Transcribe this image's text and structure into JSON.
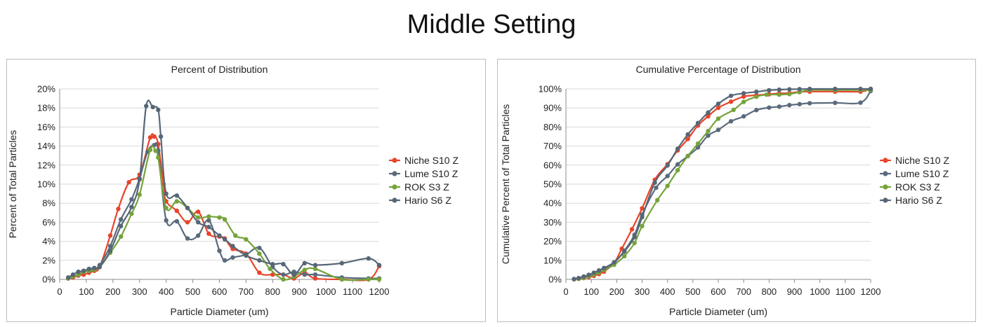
{
  "page_title": "Middle Setting",
  "colors": {
    "niche": "#e8432a",
    "lume": "#5a6a7c",
    "rok": "#75a33a",
    "hario": "#566676",
    "grid": "#d9d9d9",
    "axis": "#8c8c8c"
  },
  "chart_data": [
    {
      "type": "line",
      "title": "Percent of Distribution",
      "xlabel": "Particle Diameter (um)",
      "ylabel": "Percent of Total Particles",
      "xlim": [
        0,
        1200
      ],
      "ylim": [
        0,
        20
      ],
      "xticks": [
        0,
        100,
        200,
        300,
        400,
        500,
        600,
        700,
        800,
        900,
        1000,
        1100,
        1200
      ],
      "xtick_labels": [
        "0",
        "100",
        "200",
        "300",
        "400",
        "500",
        "600",
        "700",
        "800",
        "900",
        "1000",
        "1100",
        "1200"
      ],
      "yticks": [
        0,
        2,
        4,
        6,
        8,
        10,
        12,
        14,
        16,
        18,
        20
      ],
      "ytick_labels": [
        "0%",
        "2%",
        "4%",
        "6%",
        "8%",
        "10%",
        "12%",
        "14%",
        "16%",
        "18%",
        "20%"
      ],
      "legend": [
        "Niche S10 Z",
        "Lume S10 Z",
        "ROK S3 Z",
        "Hario S6 Z"
      ],
      "legend_position": "right",
      "series": [
        {
          "name": "Niche S10 Z",
          "color_key": "niche",
          "x": [
            32,
            50,
            70,
            90,
            110,
            130,
            150,
            190,
            220,
            260,
            300,
            340,
            355,
            370,
            390,
            400,
            440,
            480,
            520,
            560,
            600,
            620,
            650,
            700,
            750,
            800,
            840,
            880,
            920,
            960,
            1060,
            1160,
            1200
          ],
          "y": [
            0.1,
            0.2,
            0.4,
            0.5,
            0.7,
            0.9,
            1.3,
            4.6,
            7.4,
            10.2,
            11.0,
            14.9,
            15.0,
            14.2,
            10.0,
            8.2,
            7.2,
            6.0,
            7.1,
            4.8,
            4.5,
            4.3,
            3.2,
            2.7,
            0.7,
            0.5,
            0.5,
            0.1,
            0.7,
            0.1,
            0,
            0,
            1.4
          ]
        },
        {
          "name": "Lume S10 Z",
          "color_key": "lume",
          "x": [
            32,
            50,
            70,
            90,
            110,
            130,
            150,
            190,
            230,
            270,
            300,
            330,
            355,
            370,
            400,
            440,
            480,
            520,
            560,
            600,
            620,
            650,
            700,
            750,
            800,
            840,
            880,
            920,
            960,
            1060,
            1160,
            1200
          ],
          "y": [
            0.1,
            0.3,
            0.5,
            0.8,
            0.9,
            1.1,
            1.5,
            3.5,
            6.3,
            8.4,
            10.6,
            13.4,
            14.1,
            13.5,
            6.2,
            6.1,
            4.3,
            4.6,
            6.2,
            3.0,
            2.0,
            2.3,
            2.6,
            3.3,
            1.3,
            0.5,
            0.8,
            0.5,
            0.5,
            0.2,
            0.1,
            0.1
          ]
        },
        {
          "name": "ROK S3 Z",
          "color_key": "rok",
          "x": [
            32,
            50,
            70,
            90,
            110,
            130,
            150,
            190,
            230,
            270,
            300,
            340,
            360,
            370,
            400,
            440,
            480,
            520,
            560,
            600,
            620,
            660,
            700,
            750,
            790,
            840,
            880,
            920,
            960,
            1060,
            1160,
            1200
          ],
          "y": [
            0.1,
            0.3,
            0.5,
            0.8,
            0.9,
            1.0,
            1.3,
            2.8,
            4.5,
            6.9,
            8.9,
            13.6,
            13.5,
            12.8,
            7.5,
            8.2,
            7.5,
            6.5,
            6.6,
            6.5,
            6.3,
            4.6,
            4.2,
            2.7,
            1.1,
            0,
            0.3,
            1.0,
            1.1,
            0,
            0,
            0
          ]
        },
        {
          "name": "Hario S6 Z",
          "color_key": "hario",
          "x": [
            32,
            50,
            70,
            90,
            110,
            130,
            150,
            190,
            230,
            270,
            300,
            325,
            350,
            370,
            380,
            400,
            440,
            480,
            520,
            560,
            600,
            620,
            650,
            700,
            750,
            800,
            840,
            880,
            920,
            960,
            1060,
            1160,
            1200
          ],
          "y": [
            0.2,
            0.5,
            0.8,
            0.9,
            1.1,
            1.2,
            1.3,
            3.0,
            5.6,
            7.6,
            10.5,
            18.2,
            18.1,
            17.8,
            15.0,
            9.0,
            8.8,
            7.5,
            6.0,
            5.5,
            4.6,
            4.2,
            3.5,
            2.5,
            2.0,
            1.6,
            1.6,
            0.5,
            1.7,
            1.5,
            1.7,
            2.2,
            1.5
          ]
        }
      ]
    },
    {
      "type": "line",
      "title": "Cumulative Percentage of Distribution",
      "xlabel": "Particle Diameter (um)",
      "ylabel": "Cumulative Percent of Total Particles",
      "xlim": [
        0,
        1200
      ],
      "ylim": [
        0,
        100
      ],
      "xticks": [
        0,
        100,
        200,
        300,
        400,
        500,
        600,
        700,
        800,
        900,
        1000,
        1100,
        1200
      ],
      "xtick_labels": [
        "0",
        "100",
        "200",
        "300",
        "400",
        "500",
        "600",
        "700",
        "800",
        "900",
        "1000",
        "1100",
        "1200"
      ],
      "yticks": [
        0,
        10,
        20,
        30,
        40,
        50,
        60,
        70,
        80,
        90,
        100
      ],
      "ytick_labels": [
        "0%",
        "10%",
        "20%",
        "30%",
        "40%",
        "50%",
        "60%",
        "70%",
        "80%",
        "90%",
        "100%"
      ],
      "legend": [
        "Niche S10 Z",
        "Lume S10 Z",
        "ROK S3 Z",
        "Hario S6 Z"
      ],
      "legend_position": "right",
      "series": [
        {
          "name": "Niche S10 Z",
          "color_key": "niche",
          "x": [
            32,
            50,
            70,
            90,
            110,
            130,
            150,
            190,
            220,
            260,
            300,
            350,
            400,
            440,
            480,
            520,
            560,
            600,
            650,
            700,
            750,
            800,
            840,
            880,
            920,
            960,
            1060,
            1160,
            1200
          ],
          "y": [
            0.1,
            0.3,
            0.7,
            1.2,
            1.9,
            2.8,
            4.1,
            8.7,
            16.1,
            26.3,
            37.3,
            52.3,
            60.5,
            67.7,
            73.7,
            80.8,
            85.6,
            90.1,
            93.3,
            96.0,
            96.7,
            97.2,
            97.7,
            97.8,
            98.5,
            98.6,
            98.6,
            98.6,
            100
          ]
        },
        {
          "name": "Lume S10 Z",
          "color_key": "lume",
          "x": [
            32,
            50,
            70,
            90,
            110,
            130,
            150,
            190,
            230,
            270,
            300,
            355,
            400,
            440,
            480,
            520,
            560,
            600,
            650,
            700,
            750,
            800,
            840,
            880,
            920,
            960,
            1060,
            1160,
            1200
          ],
          "y": [
            0.1,
            0.4,
            0.9,
            1.7,
            2.6,
            3.7,
            5.2,
            8.7,
            15.0,
            23.4,
            34.0,
            48.1,
            54.3,
            60.4,
            64.7,
            69.3,
            75.5,
            78.5,
            83.0,
            85.6,
            88.9,
            90.2,
            90.7,
            91.5,
            92.0,
            92.5,
            92.7,
            92.8,
            98.9
          ]
        },
        {
          "name": "ROK S3 Z",
          "color_key": "rok",
          "x": [
            32,
            50,
            70,
            90,
            110,
            130,
            150,
            190,
            230,
            270,
            300,
            360,
            400,
            440,
            480,
            520,
            560,
            600,
            660,
            700,
            750,
            790,
            840,
            880,
            920,
            960,
            1060,
            1160,
            1200
          ],
          "y": [
            0.1,
            0.4,
            0.9,
            1.7,
            2.6,
            3.6,
            4.9,
            7.7,
            12.2,
            19.1,
            28.0,
            41.6,
            49.1,
            57.3,
            64.8,
            71.3,
            77.9,
            84.4,
            89.0,
            93.2,
            95.9,
            97.0,
            97.0,
            97.3,
            98.3,
            99.4,
            99.4,
            99.4,
            99.4
          ]
        },
        {
          "name": "Hario S6 Z",
          "color_key": "hario",
          "x": [
            32,
            50,
            70,
            90,
            110,
            130,
            150,
            190,
            230,
            270,
            300,
            350,
            400,
            440,
            480,
            520,
            560,
            600,
            650,
            700,
            750,
            800,
            840,
            880,
            920,
            960,
            1060,
            1160,
            1200
          ],
          "y": [
            0.2,
            0.7,
            1.5,
            2.4,
            3.5,
            4.7,
            6.0,
            9.0,
            14.6,
            22.2,
            32.7,
            50.8,
            59.8,
            68.6,
            76.1,
            82.1,
            87.6,
            92.2,
            96.4,
            97.7,
            98.5,
            99.3,
            99.6,
            99.8,
            99.9,
            100,
            100,
            100,
            100
          ]
        }
      ]
    }
  ]
}
